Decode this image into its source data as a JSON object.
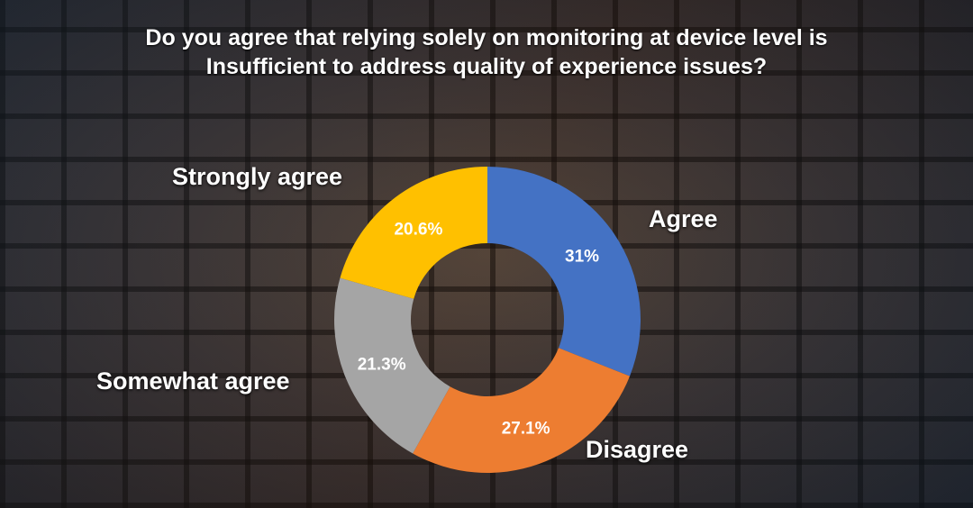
{
  "chart_data": {
    "type": "pie",
    "subtype": "donut",
    "title_lines": [
      "Do you agree that relying solely on monitoring at device level is",
      "Insufficient to address quality of experience issues?"
    ],
    "categories": [
      "Agree",
      "Disagree",
      "Somewhat agree",
      "Strongly agree"
    ],
    "values": [
      31,
      27.1,
      21.3,
      20.6
    ],
    "data_labels": [
      "31%",
      "27.1%",
      "21.3%",
      "20.6%"
    ],
    "colors": [
      "#4472C4",
      "#ED7D31",
      "#A5A5A5",
      "#FFC000"
    ],
    "start_angle": "top, clockwise"
  }
}
